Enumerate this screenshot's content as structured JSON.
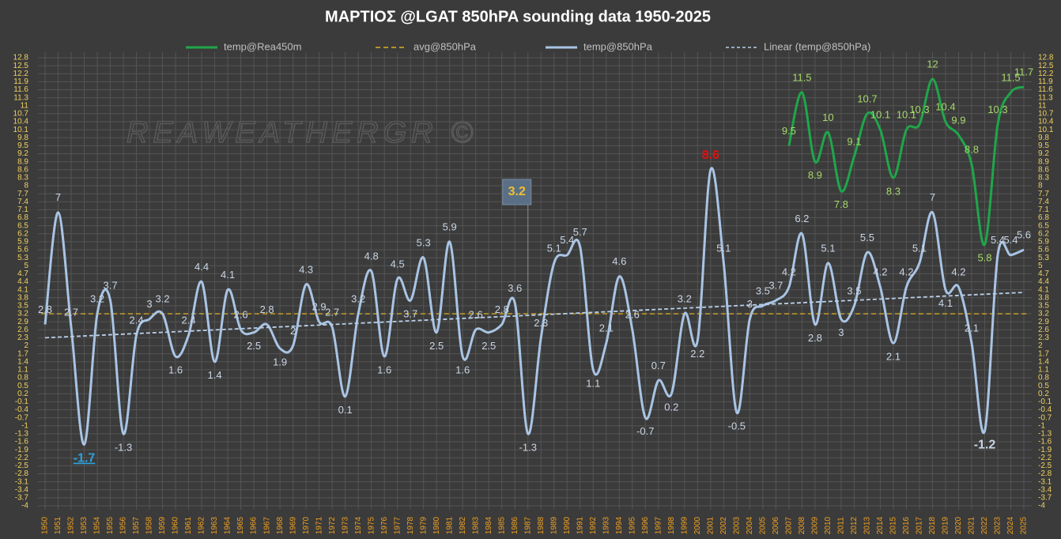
{
  "chart_data": {
    "type": "line",
    "title": "ΜΑΡΤΙΟΣ  @LGAT  850hPA  sounding data   1950-2025",
    "watermark": "REAWEATHERGR ©",
    "categories": [
      "1950",
      "1951",
      "1952",
      "1953",
      "1954",
      "1955",
      "1956",
      "1957",
      "1958",
      "1959",
      "1960",
      "1961",
      "1962",
      "1963",
      "1964",
      "1965",
      "1966",
      "1967",
      "1968",
      "1969",
      "1970",
      "1971",
      "1972",
      "1973",
      "1974",
      "1975",
      "1976",
      "1977",
      "1978",
      "1979",
      "1980",
      "1981",
      "1982",
      "1983",
      "1984",
      "1985",
      "1986",
      "1987",
      "1988",
      "1989",
      "1990",
      "1991",
      "1992",
      "1993",
      "1994",
      "1995",
      "1996",
      "1997",
      "1998",
      "1999",
      "2000",
      "2001",
      "2002",
      "2003",
      "2004",
      "2005",
      "2006",
      "2007",
      "2008",
      "2009",
      "2010",
      "2011",
      "2012",
      "2013",
      "2014",
      "2015",
      "2016",
      "2017",
      "2018",
      "2019",
      "2020",
      "2021",
      "2022",
      "2023",
      "2024",
      "2025"
    ],
    "series": [
      {
        "name": "temp@Rea450m",
        "color": "#1fa64a",
        "label_color": "#a6d96a",
        "values": [
          null,
          null,
          null,
          null,
          null,
          null,
          null,
          null,
          null,
          null,
          null,
          null,
          null,
          null,
          null,
          null,
          null,
          null,
          null,
          null,
          null,
          null,
          null,
          null,
          null,
          null,
          null,
          null,
          null,
          null,
          null,
          null,
          null,
          null,
          null,
          null,
          null,
          null,
          null,
          null,
          null,
          null,
          null,
          null,
          null,
          null,
          null,
          null,
          null,
          null,
          null,
          null,
          null,
          null,
          null,
          null,
          null,
          9.5,
          11.5,
          8.9,
          10,
          7.8,
          9.1,
          10.7,
          10.1,
          8.3,
          10.1,
          10.3,
          12,
          10.4,
          9.9,
          8.8,
          5.8,
          10.3,
          11.5,
          11.7
        ]
      },
      {
        "name": "avg@850hPa",
        "color": "#e0b020",
        "value": 3.2
      },
      {
        "name": "temp@850hPa",
        "color": "#a9c4e4",
        "label_color": "#c9d6e6",
        "values": [
          2.8,
          7,
          2.7,
          -1.7,
          3.2,
          3.7,
          -1.3,
          2.4,
          3,
          3.2,
          1.6,
          2.4,
          4.4,
          1.4,
          4.1,
          2.6,
          2.5,
          2.8,
          1.9,
          2,
          4.3,
          2.9,
          2.7,
          0.1,
          3.2,
          4.8,
          1.6,
          4.5,
          3.7,
          5.3,
          2.5,
          5.9,
          1.6,
          2.6,
          2.5,
          2.8,
          3.6,
          -1.3,
          2.3,
          5.1,
          5.4,
          5.7,
          1.1,
          2.1,
          4.6,
          2.6,
          -0.7,
          0.7,
          0.2,
          3.2,
          2.2,
          8.6,
          5.1,
          -0.5,
          3,
          3.5,
          3.7,
          4.2,
          6.2,
          2.8,
          5.1,
          3,
          3.5,
          5.5,
          4.2,
          2.1,
          4.2,
          5.1,
          7,
          4.1,
          4.2,
          2.1,
          -1.2,
          5.4,
          5.4,
          5.6
        ],
        "highlight": {
          "3": "#29a3e0",
          "51": "#e01010",
          "72": "#c9d6e6"
        }
      },
      {
        "name": "Linear (temp@850hPa)",
        "color": "#b8cfe8",
        "start": 2.3,
        "end": 4.0
      }
    ],
    "annotation": {
      "text": "3.2",
      "category_index": 37,
      "value": 3.2
    },
    "ylim": [
      -4,
      12.8
    ],
    "yticks": [
      -4,
      -3.7,
      -3.4,
      -3.1,
      -2.8,
      -2.5,
      -2.2,
      -1.9,
      -1.6,
      -1.3,
      -1,
      -0.7,
      -0.4,
      -0.1,
      0.2,
      0.5,
      0.8,
      1.1,
      1.4,
      1.7,
      2,
      2.3,
      2.6,
      2.9,
      3.2,
      3.5,
      3.8,
      4.1,
      4.4,
      4.7,
      5,
      5.3,
      5.6,
      5.9,
      6.2,
      6.5,
      6.8,
      7.1,
      7.4,
      7.7,
      8,
      8.3,
      8.6,
      8.9,
      9.2,
      9.5,
      9.8,
      10.1,
      10.4,
      10.7,
      11,
      11.3,
      11.6,
      11.9,
      12.2,
      12.5,
      12.8
    ],
    "grid": true
  }
}
